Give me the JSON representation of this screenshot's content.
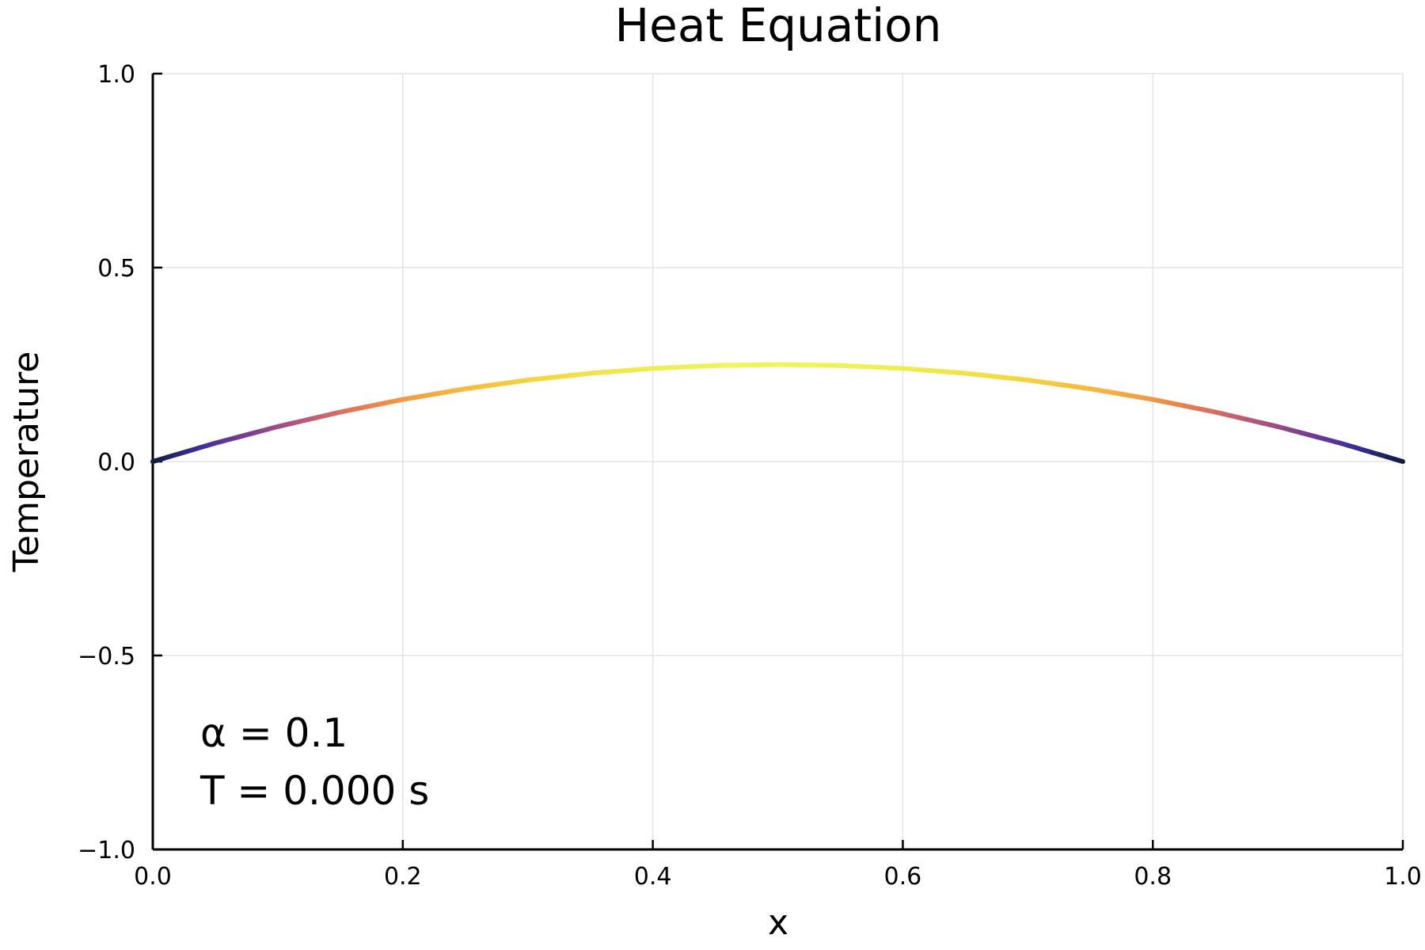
{
  "chart_data": {
    "type": "line",
    "title": "Heat Equation",
    "xlabel": "x",
    "ylabel": "Temperature",
    "xlim": [
      0.0,
      1.0
    ],
    "ylim": [
      -1.0,
      1.0
    ],
    "grid": true,
    "x_ticks": [
      {
        "value": 0.0,
        "label": "0.0"
      },
      {
        "value": 0.2,
        "label": "0.2"
      },
      {
        "value": 0.4,
        "label": "0.4"
      },
      {
        "value": 0.6,
        "label": "0.6"
      },
      {
        "value": 0.8,
        "label": "0.8"
      },
      {
        "value": 1.0,
        "label": "1.0"
      }
    ],
    "y_ticks": [
      {
        "value": -1.0,
        "label": "−1.0"
      },
      {
        "value": -0.5,
        "label": "−0.5"
      },
      {
        "value": 0.0,
        "label": "0.0"
      },
      {
        "value": 0.5,
        "label": "0.5"
      },
      {
        "value": 1.0,
        "label": "1.0"
      }
    ],
    "series": [
      {
        "x": [
          0.0,
          0.05,
          0.1,
          0.15,
          0.2,
          0.25,
          0.3,
          0.35,
          0.4,
          0.45,
          0.5,
          0.55,
          0.6,
          0.65,
          0.7,
          0.75,
          0.8,
          0.85,
          0.9,
          0.95,
          1.0
        ],
        "y": [
          0.0,
          0.0475,
          0.09,
          0.1275,
          0.16,
          0.1875,
          0.21,
          0.2275,
          0.24,
          0.2475,
          0.25,
          0.2475,
          0.24,
          0.2275,
          0.21,
          0.1875,
          0.16,
          0.1275,
          0.09,
          0.0475,
          0.0
        ]
      }
    ],
    "colormap": [
      "#0d1b3a",
      "#3a2f9a",
      "#7a3f90",
      "#b85a78",
      "#e8804e",
      "#f4b13f",
      "#f2d83e",
      "#eef55a"
    ],
    "annotations": [
      "α = 0.1",
      "T = 0.000 s"
    ]
  }
}
